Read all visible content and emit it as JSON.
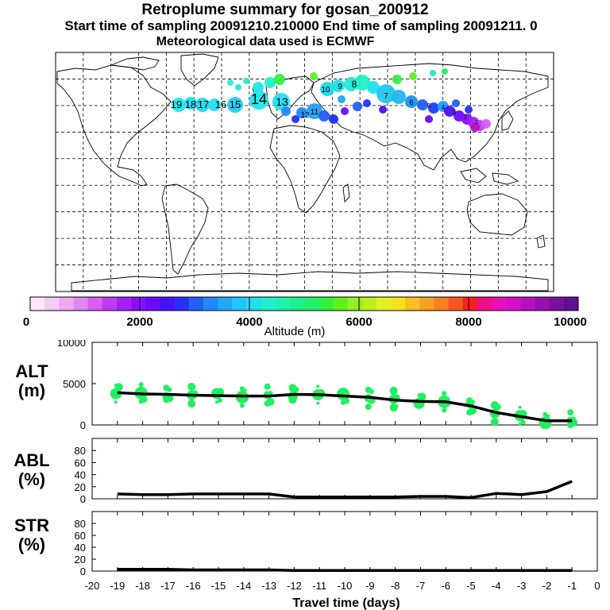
{
  "header": {
    "title": "Retroplume summary for gosan_200912",
    "sampling": "Start time of sampling 20091210.210000     End time of sampling 20091211.     0",
    "met": "Meteorological data used is ECMWF"
  },
  "colorbar": {
    "ticks": [
      "0",
      "2000",
      "4000",
      "6000",
      "8000",
      "10000"
    ],
    "label": "Altitude  (m)",
    "colors": [
      "#fbe7fb",
      "#f6cbf6",
      "#eeaaf0",
      "#e288ee",
      "#d45ff0",
      "#c13af3",
      "#a620f7",
      "#8a10fb",
      "#6c0cfd",
      "#4a10fb",
      "#2830fa",
      "#2060f8",
      "#2088f8",
      "#20a8f8",
      "#20c6f8",
      "#20e0f0",
      "#20f0d0",
      "#20f0b0",
      "#20f08c",
      "#20f068",
      "#30f040",
      "#60f020",
      "#90f020",
      "#b8f020",
      "#e0f020",
      "#f8e020",
      "#f8c020",
      "#f8a020",
      "#f88020",
      "#f85820",
      "#f82020",
      "#f0108a",
      "#e810b8",
      "#d810c8",
      "#b810c0",
      "#9810b0",
      "#7810a0",
      "#601090"
    ]
  },
  "map_labels": [
    "19",
    "18",
    "17",
    "16",
    "15",
    "14",
    "13",
    "12",
    "11",
    "10",
    "9",
    "8",
    "7",
    "6",
    "5",
    "4",
    "3",
    "2",
    "1"
  ],
  "chart_data": [
    {
      "type": "line",
      "name": "ALT",
      "ylabel": "ALT (m)",
      "ylabel_lines": [
        "ALT",
        "(m)"
      ],
      "ylim": [
        0,
        10000
      ],
      "yticks": [
        "0",
        "5000",
        "10000"
      ],
      "x": [
        -19,
        -18,
        -17,
        -16,
        -15,
        -14,
        -13,
        -12,
        -11,
        -10,
        -9,
        -8,
        -7,
        -6,
        -5,
        -4,
        -3,
        -2,
        -1
      ],
      "values": [
        3900,
        3750,
        3700,
        3600,
        3550,
        3500,
        3500,
        3700,
        3650,
        3500,
        3350,
        3000,
        2850,
        2800,
        2300,
        1500,
        1000,
        500,
        500
      ],
      "dots_color": "#20f060"
    },
    {
      "type": "line",
      "name": "ABL",
      "ylabel": "ABL (%)",
      "ylabel_lines": [
        "ABL",
        "(%)"
      ],
      "ylim": [
        0,
        100
      ],
      "yticks": [
        "0",
        "20",
        "40",
        "60",
        "80"
      ],
      "x": [
        -19,
        -18,
        -17,
        -16,
        -15,
        -14,
        -13,
        -12,
        -11,
        -10,
        -9,
        -8,
        -7,
        -6,
        -5,
        -4,
        -3,
        -2,
        -1
      ],
      "values": [
        8,
        7,
        7,
        8,
        8,
        8,
        8,
        3,
        3,
        3,
        3,
        3,
        4,
        4,
        2,
        9,
        7,
        12,
        29
      ]
    },
    {
      "type": "line",
      "name": "STR",
      "ylabel": "STR (%)",
      "ylabel_lines": [
        "STR",
        "(%)"
      ],
      "ylim": [
        0,
        100
      ],
      "yticks": [
        "0",
        "20",
        "40",
        "60",
        "80"
      ],
      "x": [
        -19,
        -18,
        -17,
        -16,
        -15,
        -14,
        -13,
        -12,
        -11,
        -10,
        -9,
        -8,
        -7,
        -6,
        -5,
        -4,
        -3,
        -2,
        -1
      ],
      "values": [
        3,
        3,
        3,
        2,
        2,
        2,
        2,
        1,
        1,
        1,
        1,
        1,
        1,
        1,
        1,
        1,
        1,
        1,
        1
      ]
    }
  ],
  "xaxis": {
    "label": "Travel time (days)",
    "ticks": [
      "-20",
      "-19",
      "-18",
      "-17",
      "-16",
      "-15",
      "-14",
      "-13",
      "-12",
      "-11",
      "-10",
      "-9",
      "-8",
      "-7",
      "-6",
      "-5",
      "-4",
      "-3",
      "-2",
      "-1",
      "0"
    ],
    "range": [
      -20,
      0
    ]
  }
}
